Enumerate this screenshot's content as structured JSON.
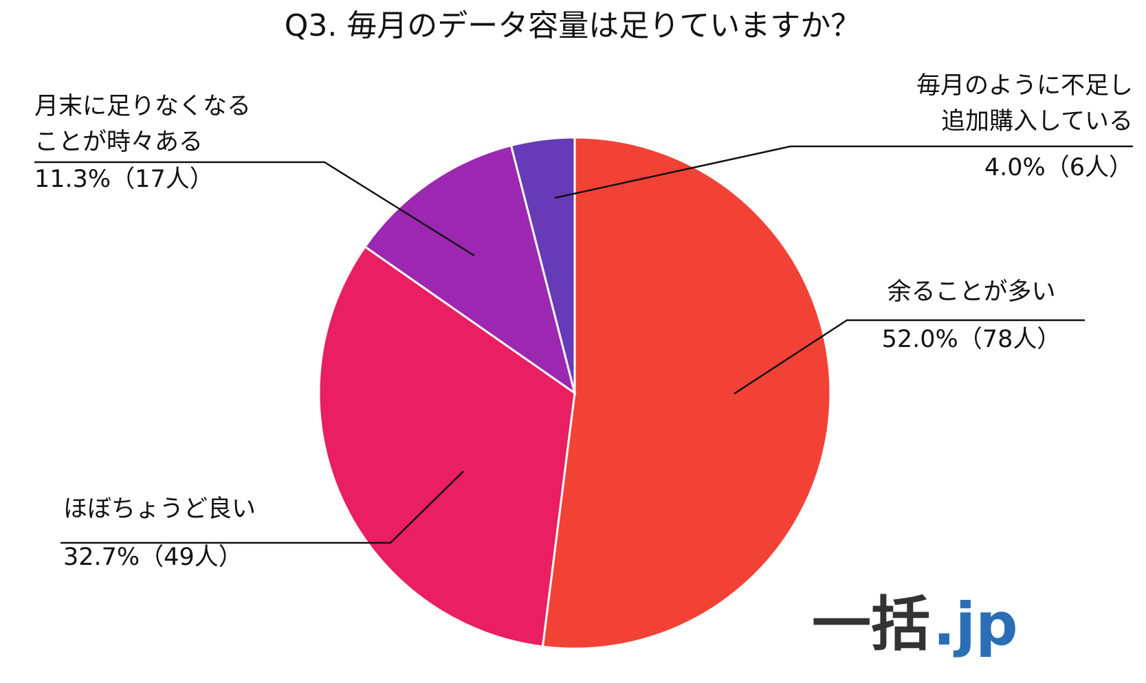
{
  "chart_data": {
    "type": "pie",
    "title": "Q3. 毎月のデータ容量は足りていますか？",
    "slices": [
      {
        "label_lines": [
          "余ることが多い"
        ],
        "percent": 52.0,
        "count": 78,
        "value_label": "52.0%（78人）",
        "color": "#f24236"
      },
      {
        "label_lines": [
          "ほぼちょうど良い"
        ],
        "percent": 32.7,
        "count": 49,
        "value_label": "32.7%（49人）",
        "color": "#e91e63"
      },
      {
        "label_lines": [
          "月末に足りなくなる",
          "ことが時々ある"
        ],
        "percent": 11.3,
        "count": 17,
        "value_label": "11.3%（17人）",
        "color": "#9c27b0"
      },
      {
        "label_lines": [
          "毎月のように不足し",
          "追加購入している"
        ],
        "percent": 4.0,
        "count": 6,
        "value_label": "4.0%（6人）",
        "color": "#673ab7"
      }
    ]
  },
  "logo": {
    "main": "一括",
    "suffix": ".jp",
    "main_color": "#333333",
    "suffix_color": "#2a6fb5"
  }
}
